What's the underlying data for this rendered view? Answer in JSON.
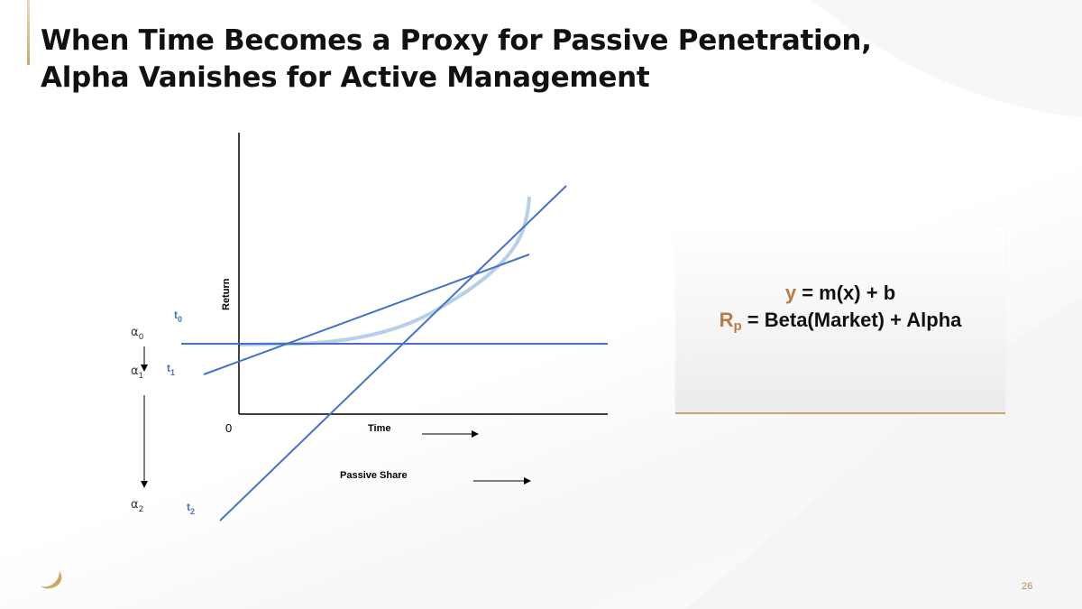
{
  "slide": {
    "title_line1": "When Time Becomes a Proxy for Passive Penetration,",
    "title_line2": "Alpha Vanishes for Active Management",
    "page_number": "26"
  },
  "diagram": {
    "y_axis_label": "Return",
    "origin_label": "0",
    "x_label_time": "Time",
    "x_label_passive": "Passive Share",
    "line_labels": [
      {
        "main": "t",
        "sub": "0"
      },
      {
        "main": "t",
        "sub": "1"
      },
      {
        "main": "t",
        "sub": "2"
      }
    ],
    "alpha_labels": [
      {
        "main": "α",
        "sub": "0"
      },
      {
        "main": "α",
        "sub": "1"
      },
      {
        "main": "α",
        "sub": "2"
      }
    ],
    "colors": {
      "lines": "#4472c4",
      "curve": "#b8cfe8",
      "axes": "#000000"
    }
  },
  "formula": {
    "line1_var": "y",
    "line1_rest": " = m(x) + b",
    "line2_var": "R",
    "line2_sub": "p",
    "line2_rest": " = Beta(Market) + Alpha",
    "accent_color": "#b77b45"
  },
  "logo": {
    "icon": "brand-swoosh-icon",
    "color": "#c9a96a"
  }
}
